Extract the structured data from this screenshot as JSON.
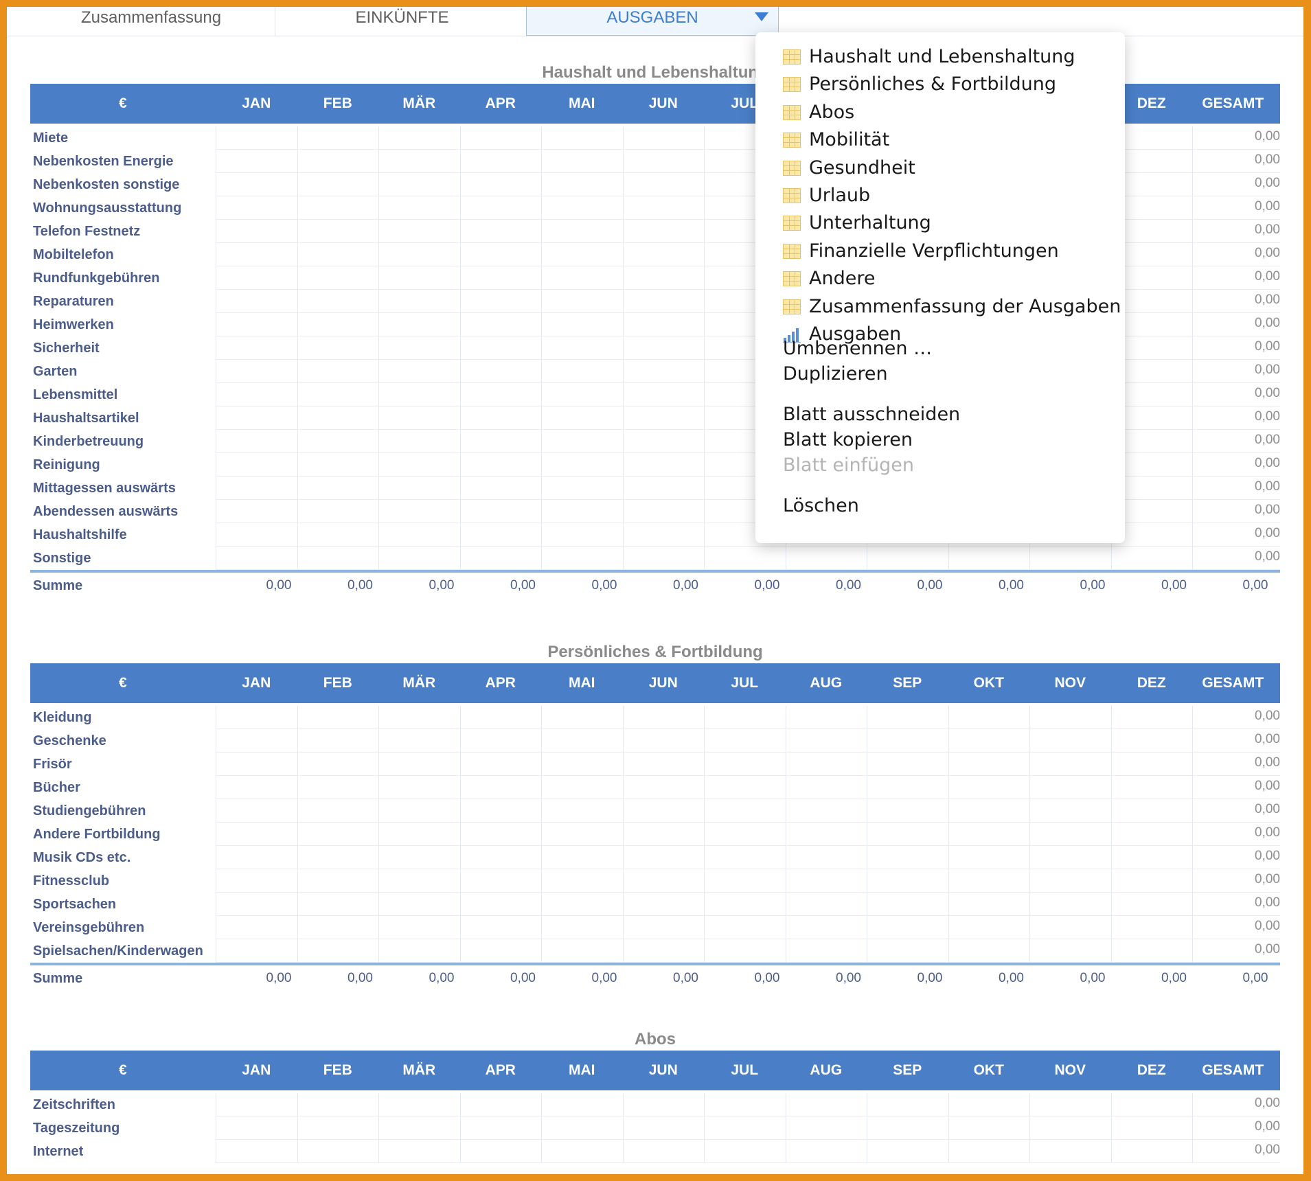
{
  "tabs": [
    {
      "label": "Zusammenfassung",
      "active": false
    },
    {
      "label": "EINKÜNFTE",
      "active": false
    },
    {
      "label": "AUSGABEN",
      "active": true
    }
  ],
  "columns": [
    "€",
    "JAN",
    "FEB",
    "MÄR",
    "APR",
    "MAI",
    "JUN",
    "JUL",
    "AUG",
    "SEP",
    "OKT",
    "NOV",
    "DEZ",
    "GESAMT"
  ],
  "sections": [
    {
      "title": "Haushalt und Lebenshaltung",
      "rows": [
        {
          "label": "Miete",
          "total": "0,00"
        },
        {
          "label": "Nebenkosten Energie",
          "total": "0,00"
        },
        {
          "label": "Nebenkosten sonstige",
          "total": "0,00"
        },
        {
          "label": "Wohnungsausstattung",
          "total": "0,00"
        },
        {
          "label": "Telefon Festnetz",
          "total": "0,00"
        },
        {
          "label": "Mobiltelefon",
          "total": "0,00"
        },
        {
          "label": "Rundfunkgebühren",
          "total": "0,00"
        },
        {
          "label": "Reparaturen",
          "total": "0,00"
        },
        {
          "label": "Heimwerken",
          "total": "0,00"
        },
        {
          "label": "Sicherheit",
          "total": "0,00"
        },
        {
          "label": "Garten",
          "total": "0,00"
        },
        {
          "label": "Lebensmittel",
          "total": "0,00"
        },
        {
          "label": "Haushaltsartikel",
          "total": "0,00"
        },
        {
          "label": "Kinderbetreuung",
          "total": "0,00"
        },
        {
          "label": "Reinigung",
          "total": "0,00"
        },
        {
          "label": "Mittagessen auswärts",
          "total": "0,00"
        },
        {
          "label": "Abendessen auswärts",
          "total": "0,00"
        },
        {
          "label": "Haushaltshilfe",
          "total": "0,00"
        },
        {
          "label": "Sonstige",
          "total": "0,00"
        }
      ],
      "sum_label": "Summe",
      "sums": [
        "0,00",
        "0,00",
        "0,00",
        "0,00",
        "0,00",
        "0,00",
        "0,00",
        "0,00",
        "0,00",
        "0,00",
        "0,00",
        "0,00",
        "0,00"
      ]
    },
    {
      "title": "Persönliches & Fortbildung",
      "rows": [
        {
          "label": "Kleidung",
          "total": "0,00"
        },
        {
          "label": "Geschenke",
          "total": "0,00"
        },
        {
          "label": "Frisör",
          "total": "0,00"
        },
        {
          "label": "Bücher",
          "total": "0,00"
        },
        {
          "label": "Studiengebühren",
          "total": "0,00"
        },
        {
          "label": "Andere Fortbildung",
          "total": "0,00"
        },
        {
          "label": "Musik CDs etc.",
          "total": "0,00"
        },
        {
          "label": "Fitnessclub",
          "total": "0,00"
        },
        {
          "label": "Sportsachen",
          "total": "0,00"
        },
        {
          "label": "Vereinsgebühren",
          "total": "0,00"
        },
        {
          "label": "Spielsachen/Kinderwagen",
          "total": "0,00"
        }
      ],
      "sum_label": "Summe",
      "sums": [
        "0,00",
        "0,00",
        "0,00",
        "0,00",
        "0,00",
        "0,00",
        "0,00",
        "0,00",
        "0,00",
        "0,00",
        "0,00",
        "0,00",
        "0,00"
      ]
    },
    {
      "title": "Abos",
      "rows": [
        {
          "label": "Zeitschriften",
          "total": "0,00"
        },
        {
          "label": "Tageszeitung",
          "total": "0,00"
        },
        {
          "label": "Internet",
          "total": "0,00"
        }
      ],
      "sum_label": "",
      "sums": []
    }
  ],
  "menu": {
    "sheets": [
      {
        "label": "Haushalt und Lebenshaltung",
        "icon": "table-icon"
      },
      {
        "label": "Persönliches & Fortbildung",
        "icon": "table-icon"
      },
      {
        "label": "Abos",
        "icon": "table-icon"
      },
      {
        "label": "Mobilität",
        "icon": "table-icon"
      },
      {
        "label": "Gesundheit",
        "icon": "table-icon"
      },
      {
        "label": "Urlaub",
        "icon": "table-icon"
      },
      {
        "label": "Unterhaltung",
        "icon": "table-icon"
      },
      {
        "label": "Finanzielle Verpflichtungen",
        "icon": "table-icon"
      },
      {
        "label": "Andere",
        "icon": "table-icon"
      },
      {
        "label": "Zusammenfassung der Ausgaben",
        "icon": "table-icon"
      },
      {
        "label": "Ausgaben",
        "icon": "bar-chart-icon"
      }
    ],
    "actions": [
      {
        "label": "Umbenennen …",
        "enabled": true
      },
      {
        "label": "Duplizieren",
        "enabled": true
      },
      {
        "label": "Blatt ausschneiden",
        "enabled": true
      },
      {
        "label": "Blatt kopieren",
        "enabled": true
      },
      {
        "label": "Blatt einfügen",
        "enabled": false
      },
      {
        "label": "Löschen",
        "enabled": true
      }
    ]
  },
  "colors": {
    "header_bg": "#4a7fc7",
    "accent": "#3d7ed2",
    "frame": "#e8901a"
  }
}
